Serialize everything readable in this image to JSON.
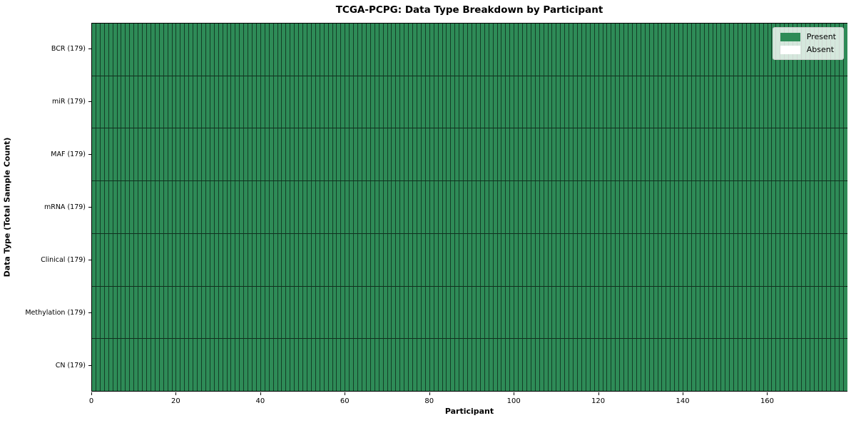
{
  "chart_data": {
    "type": "heatmap",
    "title": "TCGA-PCPG: Data Type Breakdown by Participant",
    "xlabel": "Participant",
    "ylabel": "Data Type (Total Sample Count)",
    "xlim": [
      0,
      179
    ],
    "x_ticks": [
      0,
      20,
      40,
      60,
      80,
      100,
      120,
      140,
      160
    ],
    "n_participants": 179,
    "rows": [
      {
        "label": "BCR (179)",
        "data_type": "BCR",
        "total_samples": 179,
        "present_count": 179,
        "absent_count": 0
      },
      {
        "label": "miR (179)",
        "data_type": "miR",
        "total_samples": 179,
        "present_count": 179,
        "absent_count": 0
      },
      {
        "label": "MAF (179)",
        "data_type": "MAF",
        "total_samples": 179,
        "present_count": 179,
        "absent_count": 0
      },
      {
        "label": "mRNA (179)",
        "data_type": "mRNA",
        "total_samples": 179,
        "present_count": 179,
        "absent_count": 0
      },
      {
        "label": "Clinical (179)",
        "data_type": "Clinical",
        "total_samples": 179,
        "present_count": 179,
        "absent_count": 0
      },
      {
        "label": "Methylation (179)",
        "data_type": "Methylation",
        "total_samples": 179,
        "present_count": 179,
        "absent_count": 0
      },
      {
        "label": "CN (179)",
        "data_type": "CN",
        "total_samples": 179,
        "present_count": 179,
        "absent_count": 0
      }
    ],
    "legend": {
      "position": "upper right",
      "items": [
        {
          "label": "Present",
          "color": "#2e8b57"
        },
        {
          "label": "Absent",
          "color": "#ffffff"
        }
      ]
    },
    "colors": {
      "present": "#2e8b57",
      "absent": "#ffffff",
      "cell_edge": "rgba(0,0,0,0.55)",
      "row_divider": "rgba(0,0,0,0.65)",
      "spine": "#000000"
    },
    "grid": false
  }
}
